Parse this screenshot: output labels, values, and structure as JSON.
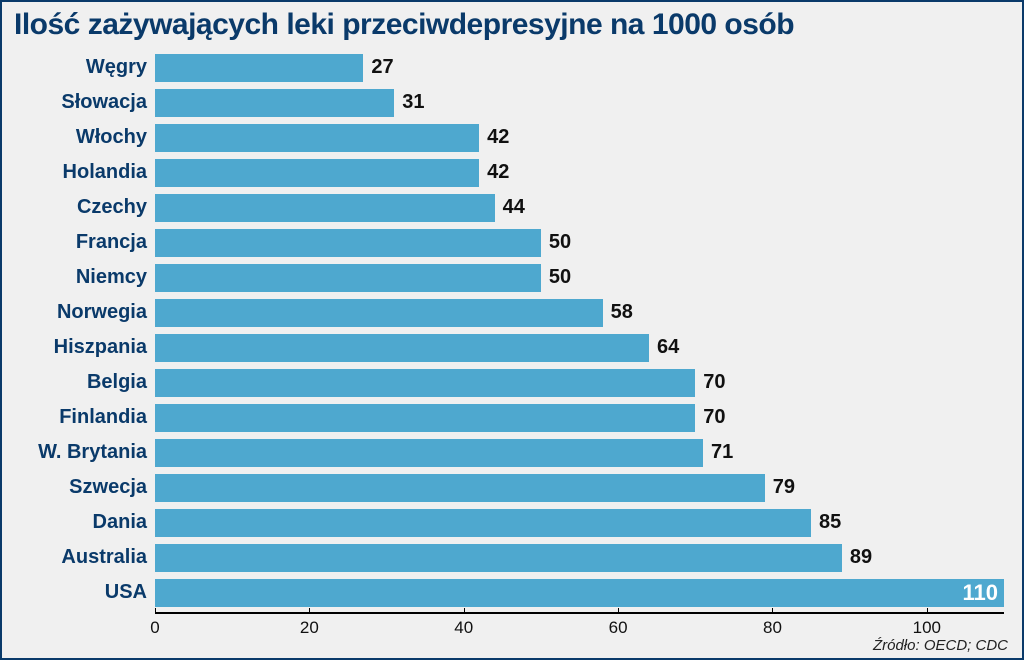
{
  "title": "Ilość zażywających leki przeciwdepresyjne na 1000 osób",
  "title_fontsize": 30,
  "title_color": "#0a3a6a",
  "border_color": "#0a3a6a",
  "background_color": "#f0f0f0",
  "chart": {
    "type": "bar-horizontal",
    "bar_color": "#4ea8cf",
    "label_color": "#0a3a6a",
    "label_fontsize": 20,
    "value_fontsize": 20,
    "value_color_outside": "#111111",
    "value_color_inside": "#ffffff",
    "xmax": 110,
    "xticks": [
      0,
      20,
      40,
      60,
      80,
      100
    ],
    "axis_color": "#000000",
    "items": [
      {
        "label": "Węgry",
        "value": 27,
        "value_inside": false
      },
      {
        "label": "Słowacja",
        "value": 31,
        "value_inside": false
      },
      {
        "label": "Włochy",
        "value": 42,
        "value_inside": false
      },
      {
        "label": "Holandia",
        "value": 42,
        "value_inside": false
      },
      {
        "label": "Czechy",
        "value": 44,
        "value_inside": false
      },
      {
        "label": "Francja",
        "value": 50,
        "value_inside": false
      },
      {
        "label": "Niemcy",
        "value": 50,
        "value_inside": false
      },
      {
        "label": "Norwegia",
        "value": 58,
        "value_inside": false
      },
      {
        "label": "Hiszpania",
        "value": 64,
        "value_inside": false
      },
      {
        "label": "Belgia",
        "value": 70,
        "value_inside": false
      },
      {
        "label": "Finlandia",
        "value": 70,
        "value_inside": false
      },
      {
        "label": "W. Brytania",
        "value": 71,
        "value_inside": false
      },
      {
        "label": "Szwecja",
        "value": 79,
        "value_inside": false
      },
      {
        "label": "Dania",
        "value": 85,
        "value_inside": false
      },
      {
        "label": "Australia",
        "value": 89,
        "value_inside": false
      },
      {
        "label": "USA",
        "value": 110,
        "value_inside": true
      }
    ]
  },
  "source": "Źródło: OECD; CDC"
}
